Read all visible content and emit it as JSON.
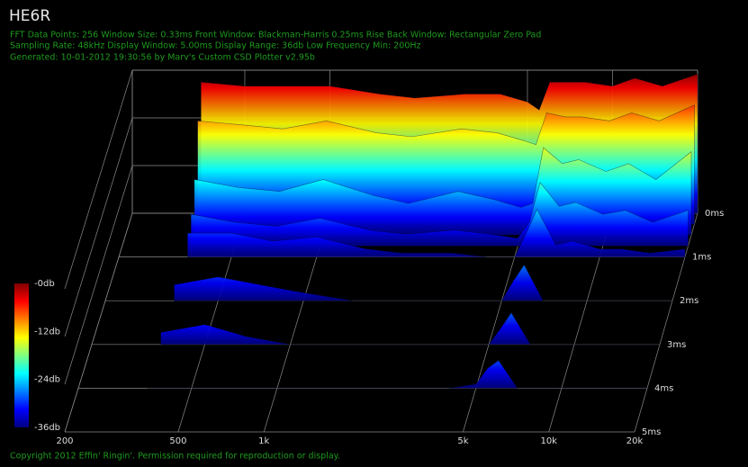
{
  "chart_data": {
    "type": "waterfall",
    "title": "HE6R",
    "info_lines": [
      "FFT Data Points: 256   Window Size: 0.33ms    Front Window: Blackman-Harris 0.25ms Rise    Back Window: Rectangular Zero Pad",
      "Sampling Rate: 48kHz   Display Window: 5.00ms    Display Range: 36db   Low Frequency Min: 200Hz",
      "Generated: 10-01-2012 19:30:56 by Marv's Custom CSD Plotter v2.95b"
    ],
    "footer": "Copyright 2012 Effin' Ringin'. Permission required for reproduction or display.",
    "log_x": true,
    "xlim": [
      200,
      20000
    ],
    "xticks": [
      200,
      500,
      {
        "value": 1000,
        "label": "1k"
      },
      {
        "value": 5000,
        "label": "5k"
      },
      {
        "value": 10000,
        "label": "10k"
      },
      {
        "value": 20000,
        "label": "20k"
      }
    ],
    "zlim": [
      0,
      5
    ],
    "zticks": [
      {
        "value": 0,
        "label": "0ms"
      },
      {
        "value": 1,
        "label": "1ms"
      },
      {
        "value": 2,
        "label": "2ms"
      },
      {
        "value": 3,
        "label": "3ms"
      },
      {
        "value": 4,
        "label": "4ms"
      },
      {
        "value": 5,
        "label": "5ms"
      }
    ],
    "ylim": [
      -36,
      0
    ],
    "yticks": [
      {
        "value": 0,
        "label": "-0db"
      },
      {
        "value": -12,
        "label": "-12db"
      },
      {
        "value": -24,
        "label": "-24db"
      },
      {
        "value": -36,
        "label": "-36db"
      }
    ],
    "x": [
      350,
      500,
      700,
      1000,
      1500,
      2000,
      3000,
      4000,
      5000,
      5500,
      6000,
      7000,
      8000,
      10000,
      12000,
      15000,
      20000
    ],
    "series": [
      {
        "time": 0,
        "values": [
          -3,
          -4,
          -4,
          -4,
          -6,
          -7,
          -6,
          -6,
          -8,
          -10,
          -3,
          -3,
          -3,
          -4,
          -2,
          -4,
          -1
        ]
      },
      {
        "time": 0.25,
        "values": [
          -10,
          -11,
          -12,
          -10,
          -13,
          -14,
          -12,
          -13,
          -15,
          -16,
          -8,
          -9,
          -9,
          -10,
          -8,
          -10,
          -6
        ]
      },
      {
        "time": 0.5,
        "values": [
          -22,
          -24,
          -25,
          -22,
          -26,
          -28,
          -25,
          -27,
          -29,
          -28,
          -14,
          -18,
          -17,
          -20,
          -18,
          -22,
          -15
        ]
      },
      {
        "time": 0.75,
        "values": [
          -28,
          -30,
          -31,
          -29,
          -32,
          -33,
          -32,
          -33,
          -34,
          -30,
          -20,
          -26,
          -25,
          -28,
          -27,
          -30,
          -27
        ]
      },
      {
        "time": 1,
        "values": [
          -30,
          -30,
          -32,
          -31,
          -34,
          -35,
          -35,
          -36,
          -36,
          -30,
          -24,
          -33,
          -32,
          -34,
          -34,
          -35,
          -34
        ]
      },
      {
        "time": 2,
        "values": [
          -32,
          -30,
          -32,
          -34,
          -36,
          -36,
          -36,
          -36,
          -36,
          -31,
          -27,
          -36,
          -36,
          -36,
          -36,
          -36,
          -36
        ]
      },
      {
        "time": 3,
        "values": [
          -33,
          -31,
          -34,
          -36,
          -36,
          -36,
          -36,
          -36,
          -36,
          -32,
          -28,
          -36,
          -36,
          -36,
          -36,
          -36,
          -36
        ]
      },
      {
        "time": 4,
        "values": [
          -36,
          -36,
          -36,
          -36,
          -36,
          -36,
          -36,
          -36,
          -35,
          -31,
          -29,
          -36,
          -36,
          -36,
          -36,
          -36,
          -36
        ]
      }
    ]
  }
}
